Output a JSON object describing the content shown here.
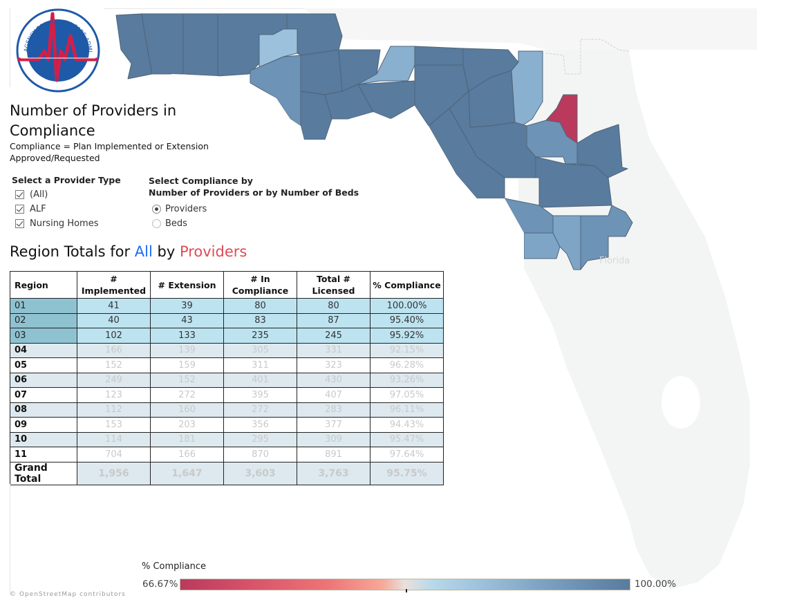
{
  "logo": {
    "top_text": "AGENCY FOR HEALTH CARE ADMINISTRATION",
    "bottom_text": "STATE OF FLORIDA"
  },
  "header": {
    "title": "Number of Providers in Compliance",
    "subtitle": "Compliance = Plan Implemented or Extension Approved/Requested"
  },
  "provider_filter": {
    "title": "Select a Provider Type",
    "options": [
      {
        "label": "(All)",
        "checked": true
      },
      {
        "label": "ALF",
        "checked": true
      },
      {
        "label": "Nursing Homes",
        "checked": true
      }
    ]
  },
  "compliance_filter": {
    "title_line1": "Select Compliance by",
    "title_line2": "Number of Providers or by Number of Beds",
    "options": [
      {
        "label": "Providers",
        "selected": true
      },
      {
        "label": "Beds",
        "selected": false
      }
    ]
  },
  "region_heading": {
    "prefix": "Region Totals for ",
    "provider": "All",
    "middle": " by ",
    "measure": "Providers"
  },
  "table": {
    "headers": {
      "region": "Region",
      "implemented": "# Implemented",
      "extension": "# Extension",
      "in_compliance_1": "# In",
      "in_compliance_2": "Compliance",
      "licensed_1": "Total #",
      "licensed_2": "Licensed",
      "pct": "% Compliance"
    },
    "rows": [
      {
        "region": "01",
        "implemented": "41",
        "extension": "39",
        "in_compliance": "80",
        "licensed": "80",
        "pct": "100.00%",
        "selected": true
      },
      {
        "region": "02",
        "implemented": "40",
        "extension": "43",
        "in_compliance": "83",
        "licensed": "87",
        "pct": "95.40%",
        "selected": true
      },
      {
        "region": "03",
        "implemented": "102",
        "extension": "133",
        "in_compliance": "235",
        "licensed": "245",
        "pct": "95.92%",
        "selected": true
      },
      {
        "region": "04",
        "implemented": "166",
        "extension": "139",
        "in_compliance": "305",
        "licensed": "331",
        "pct": "92.15%",
        "selected": false
      },
      {
        "region": "05",
        "implemented": "152",
        "extension": "159",
        "in_compliance": "311",
        "licensed": "323",
        "pct": "96.28%",
        "selected": false
      },
      {
        "region": "06",
        "implemented": "249",
        "extension": "152",
        "in_compliance": "401",
        "licensed": "430",
        "pct": "93.26%",
        "selected": false
      },
      {
        "region": "07",
        "implemented": "123",
        "extension": "272",
        "in_compliance": "395",
        "licensed": "407",
        "pct": "97.05%",
        "selected": false
      },
      {
        "region": "08",
        "implemented": "112",
        "extension": "160",
        "in_compliance": "272",
        "licensed": "283",
        "pct": "96.11%",
        "selected": false
      },
      {
        "region": "09",
        "implemented": "153",
        "extension": "203",
        "in_compliance": "356",
        "licensed": "377",
        "pct": "94.43%",
        "selected": false
      },
      {
        "region": "10",
        "implemented": "114",
        "extension": "181",
        "in_compliance": "295",
        "licensed": "309",
        "pct": "95.47%",
        "selected": false
      },
      {
        "region": "11",
        "implemented": "704",
        "extension": "166",
        "in_compliance": "870",
        "licensed": "891",
        "pct": "97.64%",
        "selected": false
      }
    ],
    "total": {
      "region": "Grand Total",
      "implemented": "1,956",
      "extension": "1,647",
      "in_compliance": "3,603",
      "licensed": "3,763",
      "pct": "95.75%"
    }
  },
  "map": {
    "state_label": "Florida",
    "colors": {
      "high": "#587b9e",
      "mid_high": "#6d93b6",
      "mid": "#7ea5c6",
      "light": "#9cc1dc",
      "low": "#b93a5d",
      "background_land": "#f3f4f4",
      "border": "#4b5f72"
    }
  },
  "legend": {
    "title": "% Compliance",
    "min_label": "66.67%",
    "max_label": "100.00%"
  },
  "footer": {
    "text": "© OpenStreetMap contributors"
  }
}
